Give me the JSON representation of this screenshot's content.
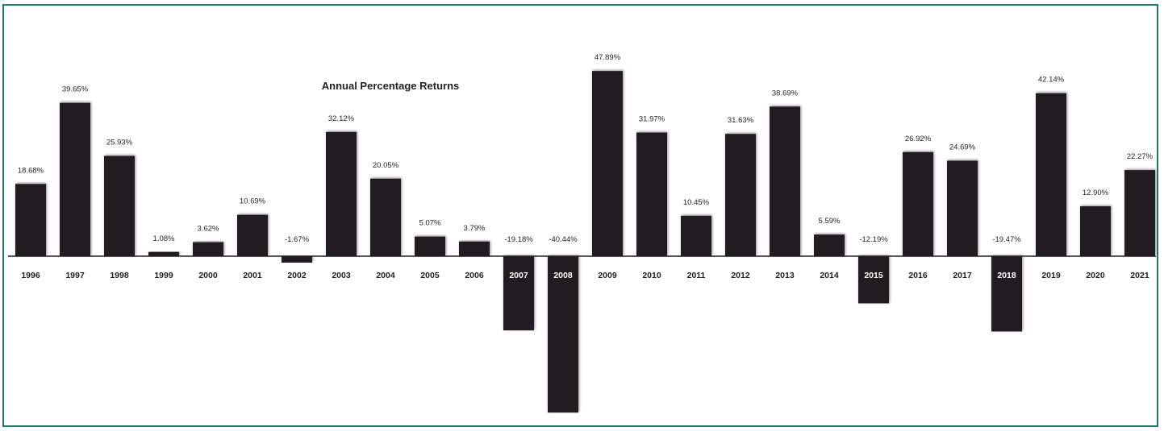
{
  "chart_data": {
    "type": "bar",
    "title": "Annual Percentage Returns",
    "xlabel": "",
    "ylabel": "",
    "categories": [
      "1996",
      "1997",
      "1998",
      "1999",
      "2000",
      "2001",
      "2002",
      "2003",
      "2004",
      "2005",
      "2006",
      "2007",
      "2008",
      "2009",
      "2010",
      "2011",
      "2012",
      "2013",
      "2014",
      "2015",
      "2016",
      "2017",
      "2018",
      "2019",
      "2020",
      "2021"
    ],
    "values": [
      18.68,
      39.65,
      25.93,
      1.08,
      3.62,
      10.69,
      -1.67,
      32.12,
      20.05,
      5.07,
      3.79,
      -19.18,
      -40.44,
      47.89,
      31.97,
      10.45,
      31.63,
      38.69,
      5.59,
      -12.19,
      26.92,
      24.69,
      -19.47,
      42.14,
      12.9,
      22.27
    ],
    "value_labels": [
      "18.68%",
      "39.65%",
      "25.93%",
      "1.08%",
      "3.62%",
      "10.69%",
      "-1.67%",
      "32.12%",
      "20.05%",
      "5.07%",
      "3.79%",
      "-19.18%",
      "-40.44%",
      "47.89%",
      "31.97%",
      "10.45%",
      "31.63%",
      "38.69%",
      "5.59%",
      "-12.19%",
      "26.92%",
      "24.69%",
      "-19.47%",
      "42.14%",
      "12.90%",
      "22.27%"
    ],
    "grid": false,
    "legend": "none",
    "colors": {
      "bar": "#231f20",
      "frame": "#1f7a6a",
      "text": "#231f20"
    }
  }
}
